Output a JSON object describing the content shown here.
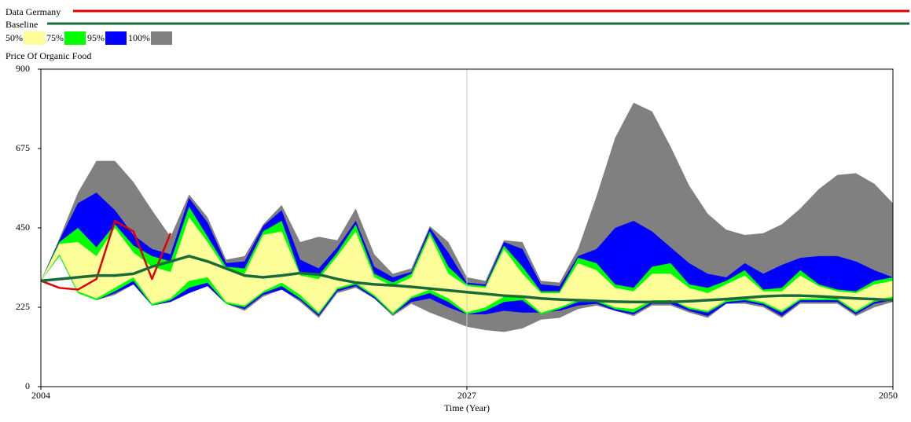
{
  "chart_data": {
    "type": "sensitivity",
    "title": "Price Of Organic Food",
    "xlabel": "Time (Year)",
    "x": [
      2004,
      2005,
      2006,
      2007,
      2008,
      2009,
      2010,
      2011,
      2012,
      2013,
      2014,
      2015,
      2016,
      2017,
      2018,
      2019,
      2020,
      2021,
      2022,
      2023,
      2024,
      2025,
      2026,
      2027,
      2028,
      2029,
      2030,
      2031,
      2032,
      2033,
      2034,
      2035,
      2036,
      2037,
      2038,
      2039,
      2040,
      2041,
      2042,
      2043,
      2044,
      2045,
      2046,
      2047,
      2048,
      2049,
      2050
    ],
    "xlim": [
      2004,
      2050
    ],
    "xticks": [
      2004,
      2027,
      2050
    ],
    "ylim": [
      0,
      900
    ],
    "yticks": [
      0,
      225,
      450,
      675,
      900
    ],
    "xgrid": true,
    "bands": [
      {
        "name": "50%",
        "color": "#ffff99",
        "upper": [
          300,
          405,
          410,
          370,
          450,
          380,
          340,
          325,
          480,
          410,
          330,
          320,
          430,
          440,
          315,
          305,
          370,
          440,
          310,
          285,
          310,
          430,
          320,
          285,
          280,
          390,
          320,
          265,
          265,
          350,
          330,
          280,
          270,
          320,
          320,
          280,
          265,
          290,
          315,
          270,
          270,
          315,
          285,
          270,
          265,
          290,
          300
        ],
        "lower": [
          300,
          375,
          270,
          250,
          280,
          310,
          235,
          250,
          300,
          310,
          240,
          230,
          270,
          295,
          260,
          210,
          280,
          295,
          260,
          210,
          255,
          275,
          250,
          210,
          225,
          255,
          255,
          210,
          225,
          245,
          245,
          225,
          220,
          245,
          245,
          225,
          215,
          245,
          250,
          240,
          215,
          250,
          250,
          250,
          215,
          245,
          255
        ]
      },
      {
        "name": "75%",
        "color": "#00ff00",
        "upper": [
          300,
          410,
          450,
          395,
          460,
          400,
          370,
          355,
          510,
          425,
          340,
          335,
          440,
          470,
          320,
          315,
          380,
          460,
          320,
          295,
          320,
          440,
          340,
          290,
          285,
          400,
          340,
          270,
          270,
          365,
          350,
          290,
          280,
          340,
          350,
          290,
          280,
          300,
          330,
          275,
          280,
          330,
          290,
          275,
          270,
          300,
          310
        ],
        "lower": [
          300,
          370,
          265,
          245,
          270,
          300,
          230,
          245,
          280,
          295,
          235,
          225,
          265,
          285,
          250,
          205,
          275,
          290,
          255,
          205,
          250,
          265,
          240,
          205,
          215,
          240,
          245,
          205,
          220,
          240,
          240,
          220,
          210,
          240,
          245,
          220,
          210,
          240,
          245,
          235,
          210,
          245,
          245,
          245,
          210,
          240,
          250
        ]
      },
      {
        "name": "95%",
        "color": "#0000ff",
        "upper": [
          300,
          415,
          520,
          550,
          500,
          430,
          390,
          375,
          535,
          465,
          350,
          355,
          455,
          500,
          360,
          335,
          395,
          470,
          340,
          310,
          325,
          450,
          380,
          295,
          290,
          410,
          390,
          290,
          285,
          370,
          390,
          450,
          470,
          440,
          395,
          350,
          320,
          310,
          350,
          320,
          345,
          365,
          370,
          370,
          355,
          330,
          310
        ],
        "lower": [
          300,
          370,
          265,
          245,
          265,
          290,
          230,
          240,
          265,
          285,
          235,
          220,
          260,
          275,
          245,
          200,
          270,
          285,
          250,
          205,
          240,
          250,
          225,
          205,
          205,
          215,
          210,
          210,
          215,
          230,
          235,
          215,
          205,
          235,
          235,
          215,
          200,
          235,
          240,
          230,
          200,
          240,
          240,
          240,
          205,
          235,
          245
        ]
      },
      {
        "name": "100%",
        "color": "#808080",
        "upper": [
          300,
          420,
          550,
          640,
          640,
          580,
          500,
          425,
          545,
          480,
          360,
          370,
          460,
          515,
          410,
          425,
          415,
          505,
          375,
          320,
          335,
          455,
          410,
          310,
          300,
          415,
          410,
          300,
          295,
          390,
          540,
          705,
          805,
          780,
          680,
          570,
          490,
          445,
          430,
          435,
          460,
          505,
          560,
          600,
          605,
          575,
          520
        ],
        "lower": [
          300,
          370,
          270,
          245,
          260,
          290,
          230,
          240,
          265,
          285,
          235,
          215,
          255,
          275,
          240,
          195,
          265,
          280,
          250,
          200,
          235,
          210,
          190,
          170,
          160,
          155,
          165,
          190,
          195,
          220,
          230,
          215,
          200,
          230,
          230,
          210,
          195,
          235,
          235,
          225,
          195,
          235,
          235,
          235,
          200,
          225,
          240
        ]
      }
    ],
    "series": [
      {
        "name": "Data Germany",
        "color": "#e00000",
        "values": [
          300,
          280,
          275,
          305,
          470,
          440,
          305,
          435,
          null,
          null,
          null,
          null,
          null,
          null,
          null,
          null,
          null,
          null,
          null,
          null,
          null,
          null,
          null,
          null,
          null,
          null,
          null,
          null,
          null,
          null,
          null,
          null,
          null,
          null,
          null,
          null,
          null,
          null,
          null,
          null,
          null,
          null,
          null,
          null,
          null,
          null,
          null
        ]
      },
      {
        "name": "Baseline",
        "color": "#1a6b3a",
        "values": [
          300,
          305,
          310,
          315,
          315,
          320,
          340,
          355,
          370,
          355,
          335,
          315,
          310,
          315,
          322,
          318,
          305,
          295,
          290,
          287,
          283,
          278,
          273,
          268,
          263,
          258,
          255,
          250,
          247,
          245,
          243,
          241,
          240,
          240,
          240,
          242,
          245,
          248,
          252,
          256,
          258,
          258,
          256,
          253,
          250,
          248,
          245
        ]
      }
    ]
  }
}
